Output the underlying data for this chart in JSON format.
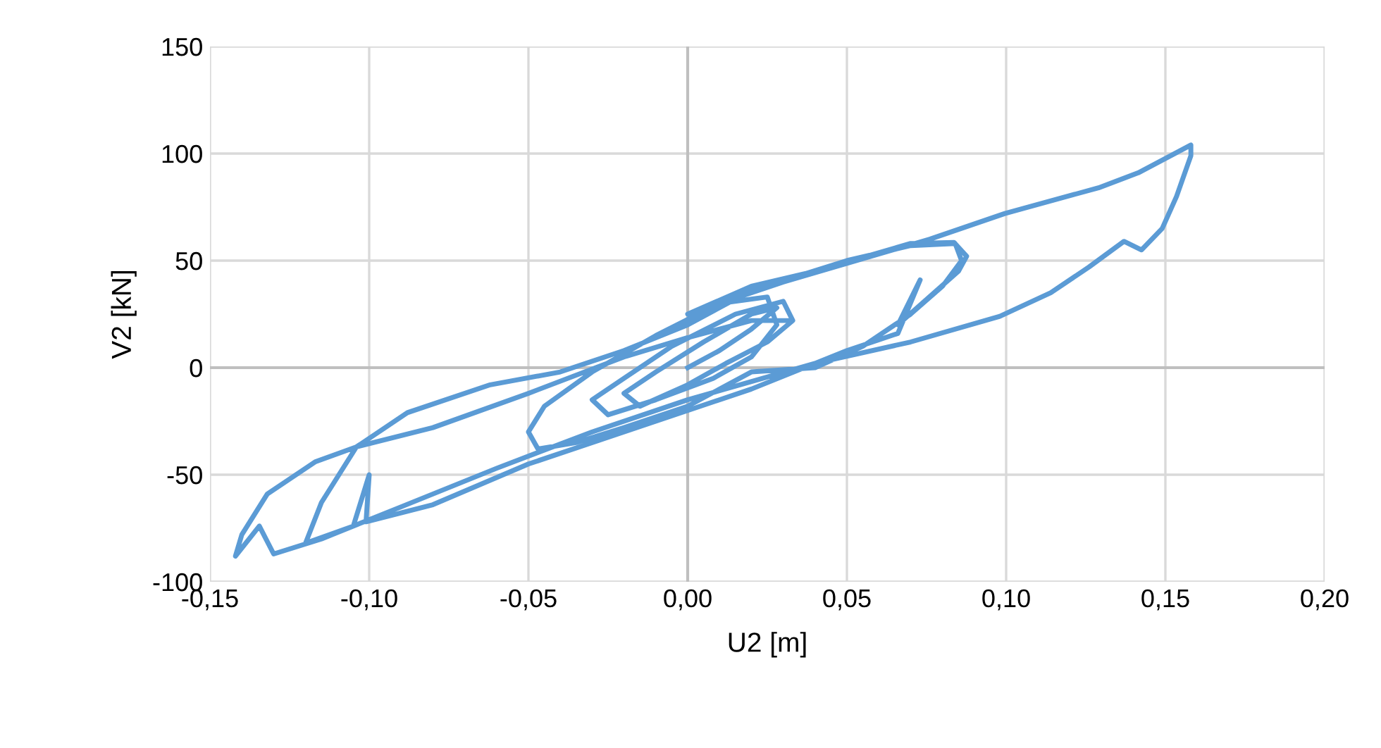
{
  "chart_data": {
    "type": "line",
    "xlabel": "U2 [m]",
    "ylabel": "V2 [kN]",
    "xlim": [
      -0.15,
      0.2
    ],
    "xticks": [
      {
        "value": -0.15,
        "label": "-0,15"
      },
      {
        "value": -0.1,
        "label": "-0,10"
      },
      {
        "value": -0.05,
        "label": "-0,05"
      },
      {
        "value": 0,
        "label": "0,00"
      },
      {
        "value": 0.05,
        "label": "0,05"
      },
      {
        "value": 0.1,
        "label": "0,10"
      },
      {
        "value": 0.15,
        "label": "0,15"
      },
      {
        "value": 0.2,
        "label": "0,20"
      }
    ],
    "ylim": [
      -100,
      150
    ],
    "yticks": [
      -100,
      -50,
      0,
      50,
      100,
      150
    ],
    "grid": true,
    "marker": "none",
    "line_style": "solid",
    "series": [
      {
        "color": "#5b9bd5",
        "x": [
          0,
          0.01,
          0.02,
          0.028,
          0.02,
          0.005,
          -0.01,
          -0.02,
          -0.015,
          0.0,
          0.012,
          0.025,
          0.033,
          0.03,
          0.015,
          -0.005,
          -0.02,
          -0.03,
          -0.025,
          -0.01,
          0.008,
          0.02,
          0.028,
          0.025,
          0.01,
          -0.01,
          -0.03,
          -0.045,
          -0.05,
          -0.047,
          -0.035,
          -0.02,
          0.0,
          0.02,
          0.04,
          0.055,
          0.07,
          0.08,
          0.086,
          0.084,
          0.07,
          0.05,
          0.02,
          0.0,
          -0.02,
          -0.04,
          -0.062,
          -0.088,
          -0.104,
          -0.115,
          -0.12,
          -0.105,
          -0.1,
          -0.101,
          -0.08,
          -0.05,
          -0.02,
          0.02,
          0.05,
          0.066,
          0.073,
          0.066,
          0.085,
          0.0876,
          0.0836,
          0.07,
          0.04,
          0.02,
          0.0,
          0.03,
          0.076,
          0.0996,
          0.129,
          0.1415,
          0.158,
          0.158,
          0.1535,
          0.149,
          0.1425,
          0.137,
          0.126,
          0.114,
          0.098,
          0.07,
          0.04,
          0.0,
          -0.03,
          -0.06,
          -0.09,
          -0.115,
          -0.13,
          -0.1345,
          -0.142,
          -0.14,
          -0.132,
          -0.117,
          -0.104,
          -0.08,
          -0.05,
          -0.02,
          0.0,
          0.02,
          0.032
        ],
        "values": [
          0,
          8,
          18,
          28,
          25,
          12,
          -2,
          -12,
          -18,
          -8,
          2,
          12,
          22,
          31,
          25,
          10,
          -5,
          -15,
          -22,
          -15,
          -5,
          5,
          20,
          33,
          30,
          15,
          -2,
          -18,
          -30,
          -38,
          -35,
          -28,
          -18,
          -2,
          0,
          10,
          25,
          38,
          50,
          58,
          57,
          50,
          36,
          20,
          8,
          -2,
          -8,
          -21,
          -37,
          -63,
          -82,
          -74,
          -50,
          -72,
          -64,
          -45,
          -30,
          -10,
          8,
          16,
          41,
          20,
          45,
          52,
          58.5,
          58,
          45,
          38,
          25,
          40,
          60,
          72,
          84,
          91,
          104,
          99,
          80,
          65,
          55,
          59,
          47,
          35,
          24,
          12,
          2,
          -15,
          -30,
          -47,
          -65,
          -80,
          -87,
          -74,
          -88,
          -78,
          -59,
          -44,
          -37,
          -28,
          -12,
          5,
          14,
          22,
          22
        ]
      }
    ]
  }
}
